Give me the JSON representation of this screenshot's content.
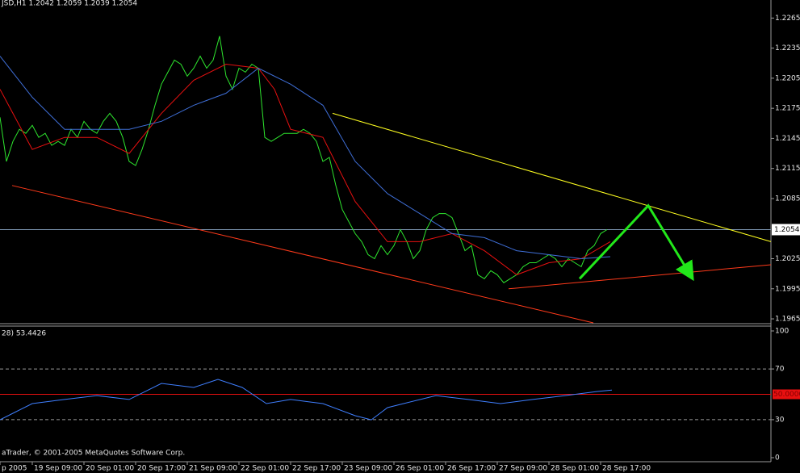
{
  "chart_data": [
    {
      "type": "line",
      "title": "JSD,H1  1.2042 1.2059 1.2039 1.2054",
      "xlim": [
        0,
        238.75
      ],
      "ylim": [
        1.1961,
        1.2283
      ],
      "yticks": [
        1.2265,
        1.2235,
        1.2205,
        1.2175,
        1.2145,
        1.2115,
        1.2085,
        1.2025,
        1.1995,
        1.1965
      ],
      "current_price": 1.2054,
      "xticks": [
        {
          "value": 0,
          "label": "p 2005"
        },
        {
          "value": 10,
          "label": "19 Sep 09:00"
        },
        {
          "value": 26,
          "label": "20 Sep 01:00"
        },
        {
          "value": 42,
          "label": "20 Sep 17:00"
        },
        {
          "value": 58,
          "label": "21 Sep 09:00"
        },
        {
          "value": 74,
          "label": "22 Sep 01:00"
        },
        {
          "value": 90,
          "label": "22 Sep 17:00"
        },
        {
          "value": 106,
          "label": "23 Sep 09:00"
        },
        {
          "value": 122,
          "label": "26 Sep 01:00"
        },
        {
          "value": 138,
          "label": "26 Sep 17:00"
        },
        {
          "value": 154,
          "label": "27 Sep 09:00"
        },
        {
          "value": 170,
          "label": "28 Sep 01:00"
        },
        {
          "value": 186,
          "label": "28 Sep 17:00"
        }
      ],
      "series": [
        {
          "color": "#2ee62e",
          "x": [
            0,
            2,
            4,
            6,
            8,
            10,
            12,
            14,
            16,
            18,
            20,
            22,
            24,
            26,
            28,
            30,
            32,
            34,
            36,
            38,
            40,
            42,
            44,
            46,
            48,
            50,
            52,
            54,
            56,
            58,
            60,
            62,
            64,
            66,
            68,
            70,
            72,
            74,
            76,
            78,
            80,
            82,
            84,
            86,
            88,
            90,
            92,
            94,
            96,
            98,
            100,
            102,
            104,
            106,
            108,
            110,
            112,
            114,
            116,
            118,
            120,
            122,
            124,
            126,
            128,
            130,
            132,
            134,
            136,
            138,
            140,
            142,
            144,
            146,
            148,
            150,
            152,
            154,
            156,
            158,
            160,
            162,
            164,
            166,
            168,
            170,
            172,
            174,
            176,
            178,
            180,
            182,
            184,
            186,
            188
          ],
          "values": [
            1.2166,
            1.2122,
            1.2142,
            1.2154,
            1.215,
            1.2158,
            1.2146,
            1.215,
            1.2138,
            1.2142,
            1.2138,
            1.2154,
            1.2146,
            1.2162,
            1.2154,
            1.215,
            1.2162,
            1.217,
            1.2162,
            1.2146,
            1.2122,
            1.2118,
            1.2134,
            1.2154,
            1.2178,
            1.2199,
            1.2211,
            1.2223,
            1.2219,
            1.2207,
            1.2215,
            1.2227,
            1.2215,
            1.2223,
            1.2247,
            1.2207,
            1.2194,
            1.2215,
            1.2211,
            1.2219,
            1.2215,
            1.2146,
            1.2142,
            1.2146,
            1.215,
            1.215,
            1.215,
            1.2154,
            1.215,
            1.2142,
            1.2122,
            1.2126,
            1.2098,
            1.2074,
            1.2062,
            1.205,
            1.2042,
            1.2029,
            1.2025,
            1.2038,
            1.2029,
            1.2038,
            1.2054,
            1.2042,
            1.2025,
            1.2033,
            1.2054,
            1.2066,
            1.207,
            1.207,
            1.2066,
            1.205,
            1.2033,
            1.2038,
            1.2009,
            1.2005,
            1.2013,
            1.2009,
            1.2001,
            1.2005,
            1.2009,
            1.2017,
            1.2021,
            1.2021,
            1.2025,
            1.2029,
            1.2025,
            1.2017,
            1.2025,
            1.2021,
            1.2017,
            1.2033,
            1.2038,
            1.205,
            1.2054
          ]
        },
        {
          "color": "#e81010",
          "x": [
            0,
            10,
            20,
            30,
            40,
            50,
            60,
            70,
            80,
            85,
            90,
            100,
            110,
            120,
            130,
            140,
            150,
            160,
            170,
            180,
            189
          ],
          "values": [
            1.2194,
            1.2134,
            1.2146,
            1.2146,
            1.213,
            1.217,
            1.2203,
            1.2219,
            1.2215,
            1.2194,
            1.2154,
            1.2146,
            1.2082,
            1.2042,
            1.2042,
            1.205,
            1.2033,
            1.2009,
            1.2021,
            1.2025,
            1.2042
          ]
        },
        {
          "color": "#3f6fd8",
          "x": [
            0,
            10,
            20,
            30,
            40,
            50,
            60,
            70,
            80,
            90,
            100,
            110,
            120,
            130,
            140,
            150,
            160,
            170,
            180,
            189
          ],
          "values": [
            1.2227,
            1.2186,
            1.2154,
            1.2154,
            1.2154,
            1.2162,
            1.2178,
            1.219,
            1.2215,
            1.2199,
            1.2178,
            1.2122,
            1.209,
            1.207,
            1.205,
            1.2046,
            1.2033,
            1.2029,
            1.2025,
            1.2027
          ]
        },
        {
          "color": "#ffff20",
          "x": [
            103,
            238.75
          ],
          "values": [
            1.217,
            1.2042
          ]
        },
        {
          "color": "#ff3a1a",
          "x": [
            3.75,
            183.75
          ],
          "values": [
            1.2098,
            1.1961
          ]
        },
        {
          "color": "#ff3a1a",
          "x": [
            157.5,
            238.75
          ],
          "values": [
            1.1995,
            1.2019
          ]
        },
        {
          "color": "#22e81a",
          "arrow": true,
          "x": [
            179.5,
            200.75,
            213.75
          ],
          "values": [
            1.2005,
            1.2078,
            1.2009
          ]
        }
      ]
    },
    {
      "type": "line",
      "title": "28) 53.4426",
      "xlim": [
        0,
        238.75
      ],
      "ylim": [
        0,
        100
      ],
      "yticks": [
        100,
        70,
        30,
        0
      ],
      "level": {
        "value": 50,
        "label": "50.0000"
      },
      "series": [
        {
          "color": "#3f7fff",
          "x": [
            0,
            5,
            10,
            20,
            30,
            40,
            50,
            60,
            67.5,
            75,
            82.5,
            90,
            100,
            110,
            115,
            120,
            125,
            135,
            145,
            155,
            165,
            175,
            185,
            189.5
          ],
          "values": [
            29.9,
            36.3,
            42.7,
            45.9,
            49.0,
            45.9,
            58.6,
            55.4,
            61.8,
            55.4,
            42.7,
            45.9,
            42.7,
            33.1,
            29.9,
            39.5,
            42.7,
            49.0,
            45.9,
            42.7,
            45.9,
            49.0,
            52.2,
            53.4
          ]
        }
      ]
    }
  ],
  "footer": "aTrader, © 2001-2005 MetaQuotes Software Corp."
}
